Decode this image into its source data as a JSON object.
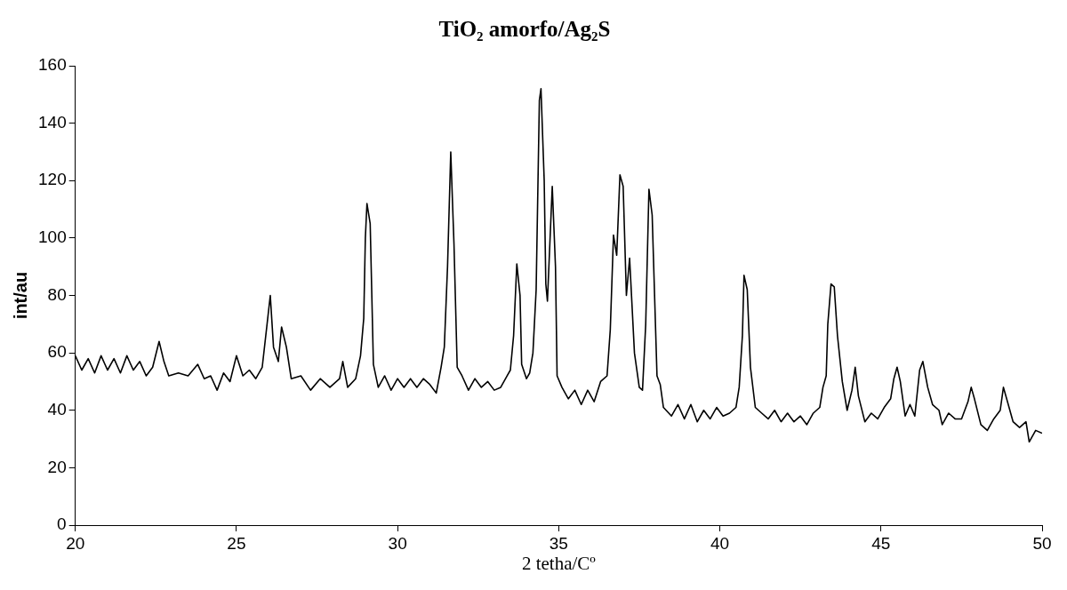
{
  "chart_data": {
    "type": "line",
    "title": "TiO₂ amorfo/Ag₂S",
    "xlabel": "2 tetha/Cº",
    "ylabel": "int/au",
    "xlim": [
      20,
      50
    ],
    "xticks": [
      20,
      25,
      30,
      35,
      40,
      45,
      50
    ],
    "ylim": [
      0,
      160
    ],
    "yticks": [
      0,
      20,
      40,
      60,
      80,
      100,
      120,
      140,
      160
    ],
    "grid": false,
    "legend": false,
    "marker": "none",
    "line_style": "solid",
    "series": [
      {
        "color": "#000000",
        "x": [
          20.0,
          20.2,
          20.4,
          20.6,
          20.8,
          21.0,
          21.2,
          21.4,
          21.6,
          21.8,
          22.0,
          22.2,
          22.4,
          22.6,
          22.75,
          22.9,
          23.2,
          23.5,
          23.8,
          24.0,
          24.2,
          24.4,
          24.6,
          24.8,
          25.0,
          25.2,
          25.4,
          25.6,
          25.8,
          25.95,
          26.05,
          26.15,
          26.3,
          26.4,
          26.55,
          26.7,
          27.0,
          27.3,
          27.6,
          27.9,
          28.2,
          28.3,
          28.45,
          28.7,
          28.85,
          28.95,
          29.0,
          29.05,
          29.15,
          29.25,
          29.4,
          29.6,
          29.8,
          30.0,
          30.2,
          30.4,
          30.6,
          30.8,
          31.0,
          31.2,
          31.35,
          31.45,
          31.55,
          31.6,
          31.65,
          31.75,
          31.85,
          32.0,
          32.2,
          32.4,
          32.6,
          32.8,
          33.0,
          33.2,
          33.4,
          33.5,
          33.6,
          33.7,
          33.8,
          33.85,
          34.0,
          34.1,
          34.2,
          34.3,
          34.4,
          34.45,
          34.55,
          34.6,
          34.65,
          34.8,
          34.9,
          34.95,
          35.1,
          35.3,
          35.5,
          35.7,
          35.9,
          36.1,
          36.3,
          36.5,
          36.6,
          36.7,
          36.8,
          36.9,
          37.0,
          37.1,
          37.2,
          37.35,
          37.5,
          37.6,
          37.7,
          37.8,
          37.9,
          38.05,
          38.15,
          38.25,
          38.5,
          38.7,
          38.9,
          39.1,
          39.3,
          39.5,
          39.7,
          39.9,
          40.1,
          40.3,
          40.5,
          40.6,
          40.7,
          40.75,
          40.85,
          40.95,
          41.1,
          41.3,
          41.5,
          41.7,
          41.9,
          42.1,
          42.3,
          42.5,
          42.7,
          42.9,
          43.1,
          43.2,
          43.3,
          43.35,
          43.45,
          43.55,
          43.65,
          43.8,
          43.95,
          44.1,
          44.2,
          44.3,
          44.5,
          44.7,
          44.9,
          45.1,
          45.3,
          45.4,
          45.5,
          45.6,
          45.75,
          45.9,
          46.05,
          46.2,
          46.3,
          46.45,
          46.6,
          46.8,
          46.9,
          47.1,
          47.3,
          47.5,
          47.7,
          47.8,
          47.9,
          48.1,
          48.3,
          48.5,
          48.7,
          48.8,
          48.95,
          49.1,
          49.3,
          49.5,
          49.6,
          49.8,
          50.0
        ],
        "values": [
          59,
          54,
          58,
          53,
          59,
          54,
          58,
          53,
          59,
          54,
          57,
          52,
          55,
          64,
          57,
          52,
          53,
          52,
          56,
          51,
          52,
          47,
          53,
          50,
          59,
          52,
          54,
          51,
          55,
          70,
          80,
          62,
          57,
          69,
          62,
          51,
          52,
          47,
          51,
          48,
          51,
          57,
          48,
          51,
          59,
          72,
          100,
          112,
          105,
          56,
          48,
          52,
          47,
          51,
          48,
          51,
          48,
          51,
          49,
          46,
          55,
          62,
          90,
          110,
          130,
          98,
          55,
          52,
          47,
          51,
          48,
          50,
          47,
          48,
          52,
          54,
          66,
          91,
          80,
          56,
          51,
          53,
          60,
          82,
          148,
          152,
          120,
          84,
          78,
          118,
          90,
          52,
          48,
          44,
          47,
          42,
          47,
          43,
          50,
          52,
          68,
          101,
          94,
          122,
          118,
          80,
          93,
          60,
          48,
          47,
          70,
          117,
          108,
          52,
          49,
          41,
          38,
          42,
          37,
          42,
          36,
          40,
          37,
          41,
          38,
          39,
          41,
          48,
          66,
          87,
          82,
          55,
          41,
          39,
          37,
          40,
          36,
          39,
          36,
          38,
          35,
          39,
          41,
          48,
          52,
          70,
          84,
          83,
          66,
          50,
          40,
          47,
          55,
          45,
          36,
          39,
          37,
          41,
          44,
          51,
          55,
          50,
          38,
          42,
          38,
          54,
          57,
          48,
          42,
          40,
          35,
          39,
          37,
          37,
          43,
          48,
          44,
          35,
          33,
          37,
          40,
          48,
          42,
          36,
          34,
          36,
          29,
          33,
          32
        ]
      }
    ]
  }
}
